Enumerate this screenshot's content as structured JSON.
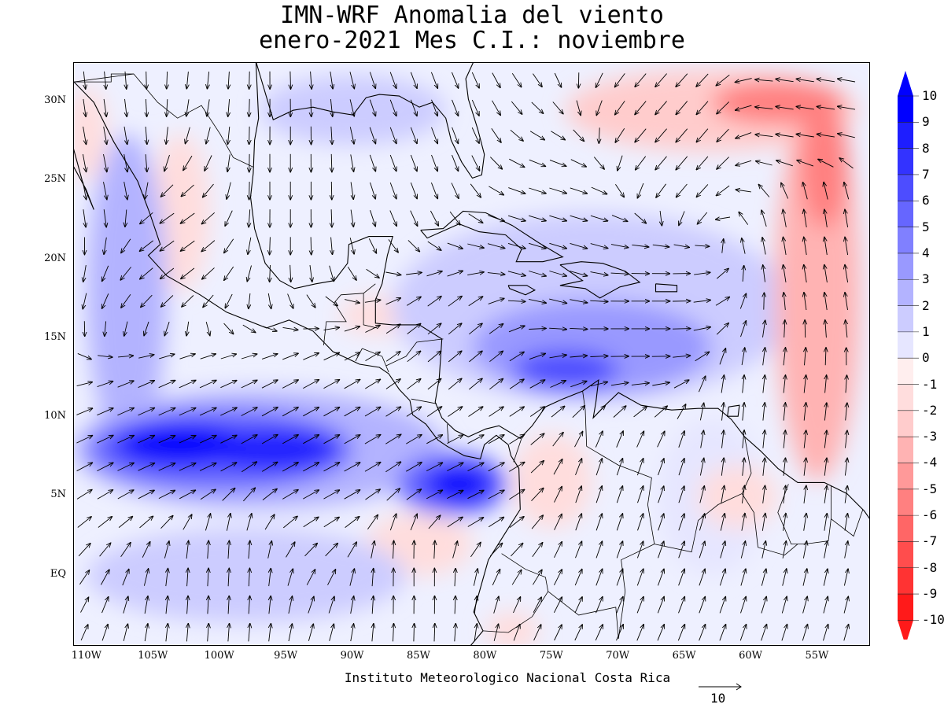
{
  "title": {
    "line1": "IMN-WRF Anomalia del viento",
    "line2": "enero-2021 Mes C.I.: noviembre"
  },
  "footer": "Instituto Meteorologico Nacional Costa Rica",
  "axes": {
    "lat_labels": [
      "30N",
      "25N",
      "20N",
      "15N",
      "10N",
      "5N",
      "EQ"
    ],
    "lat_values": [
      30,
      25,
      20,
      15,
      10,
      5,
      0
    ],
    "lon_labels": [
      "110W",
      "105W",
      "100W",
      "95W",
      "90W",
      "85W",
      "80W",
      "75W",
      "70W",
      "65W",
      "60W",
      "55W"
    ],
    "lon_values": [
      -110,
      -105,
      -100,
      -95,
      -90,
      -85,
      -80,
      -75,
      -70,
      -65,
      -60,
      -55
    ],
    "lon_range": [
      -111,
      -51
    ],
    "lat_range": [
      -4.5,
      32.5
    ]
  },
  "colorbar": {
    "labels": [
      "10",
      "9",
      "8",
      "7",
      "6",
      "5",
      "4",
      "3",
      "2",
      "1",
      "0",
      "-1",
      "-2",
      "-3",
      "-4",
      "-5",
      "-6",
      "-7",
      "-8",
      "-9",
      "-10"
    ],
    "colors": [
      "#0000ff",
      "#1e1eff",
      "#3333ff",
      "#4d4dff",
      "#6666ff",
      "#8080ff",
      "#9999ff",
      "#b3b3ff",
      "#ccccff",
      "#e6e6ff",
      "#ffeeee",
      "#ffdddd",
      "#ffcccc",
      "#ffb3b3",
      "#ff9999",
      "#ff8080",
      "#ff6666",
      "#ff4d4d",
      "#ff3333",
      "#ff1a1a"
    ]
  },
  "reference_vector": {
    "label": "10"
  },
  "map": {
    "background": "#eef0ff",
    "coast_color": "#000000",
    "arrow_color": "#000000"
  },
  "anomaly_regions": [
    {
      "lon": -103,
      "lat": 8.3,
      "rx": 5,
      "ry": 1.4,
      "level": 10
    },
    {
      "lon": -96,
      "lat": 8.0,
      "rx": 5,
      "ry": 1.3,
      "level": 9
    },
    {
      "lon": -100,
      "lat": 8.0,
      "rx": 10,
      "ry": 2.6,
      "level": 6
    },
    {
      "lon": -97,
      "lat": 8.0,
      "rx": 14,
      "ry": 3.8,
      "level": 3
    },
    {
      "lon": -82,
      "lat": 5.8,
      "rx": 2.6,
      "ry": 1.2,
      "level": 10
    },
    {
      "lon": -82.5,
      "lat": 5.8,
      "rx": 4.2,
      "ry": 2.0,
      "level": 6
    },
    {
      "lon": -72,
      "lat": 14.5,
      "rx": 9,
      "ry": 3.0,
      "level": 4
    },
    {
      "lon": -74,
      "lat": 13.0,
      "rx": 4,
      "ry": 1.3,
      "level": 7
    },
    {
      "lon": -72,
      "lat": 17,
      "rx": 15,
      "ry": 6,
      "level": 2
    },
    {
      "lon": -90,
      "lat": 29.5,
      "rx": 7,
      "ry": 2.2,
      "level": 2
    },
    {
      "lon": -107,
      "lat": 18,
      "rx": 3,
      "ry": 10,
      "level": 3
    },
    {
      "lon": -98,
      "lat": 0,
      "rx": 12,
      "ry": 3,
      "level": 2
    },
    {
      "lon": -63,
      "lat": 5,
      "rx": 4,
      "ry": 5,
      "level": 1
    },
    {
      "lon": -63,
      "lat": 29.5,
      "rx": 11,
      "ry": 2.6,
      "level": -2
    },
    {
      "lon": -58,
      "lat": 30.0,
      "rx": 5,
      "ry": 1.4,
      "level": -5
    },
    {
      "lon": -55,
      "lat": 18,
      "rx": 3.2,
      "ry": 12,
      "level": -3
    },
    {
      "lon": -54.5,
      "lat": 26,
      "rx": 1.8,
      "ry": 4,
      "level": -5
    },
    {
      "lon": -103,
      "lat": 23,
      "rx": 2.2,
      "ry": 5,
      "level": -1
    },
    {
      "lon": -110,
      "lat": 28,
      "rx": 1.5,
      "ry": 3,
      "level": -1
    },
    {
      "lon": -88,
      "lat": 16.5,
      "rx": 3,
      "ry": 1.2,
      "level": -1
    },
    {
      "lon": -85,
      "lat": 2,
      "rx": 4,
      "ry": 2,
      "level": -1
    },
    {
      "lon": -75,
      "lat": 6,
      "rx": 3,
      "ry": 3,
      "level": -1
    },
    {
      "lon": -61,
      "lat": 5,
      "rx": 3,
      "ry": 2,
      "level": -1
    },
    {
      "lon": -78,
      "lat": -3.5,
      "rx": 2,
      "ry": 1.2,
      "level": -1
    }
  ],
  "wind_field": [
    {
      "lon": -108,
      "lat": 25,
      "u": 0.2,
      "v": -1.0
    },
    {
      "lon": -104,
      "lat": 22,
      "u": -0.7,
      "v": -0.5
    },
    {
      "lon": -95,
      "lat": 25,
      "u": 0.0,
      "v": -1.0
    },
    {
      "lon": -85,
      "lat": 27,
      "u": 0.3,
      "v": -0.8
    },
    {
      "lon": -75,
      "lat": 21,
      "u": 1.0,
      "v": -0.3
    },
    {
      "lon": -68,
      "lat": 16,
      "u": 1.0,
      "v": 0.0
    },
    {
      "lon": -82,
      "lat": 14,
      "u": 0.6,
      "v": 0.5
    },
    {
      "lon": -103,
      "lat": 8,
      "u": 1.0,
      "v": 0.45
    },
    {
      "lon": -92,
      "lat": 7,
      "u": 1.0,
      "v": 0.55
    },
    {
      "lon": -82,
      "lat": 6,
      "u": 1.0,
      "v": 0.5
    },
    {
      "lon": -100,
      "lat": 0,
      "u": 0.05,
      "v": 1.0
    },
    {
      "lon": -85,
      "lat": 0,
      "u": 0.0,
      "v": 1.0
    },
    {
      "lon": -60,
      "lat": 10,
      "u": 0.1,
      "v": 1.0
    },
    {
      "lon": -55,
      "lat": 22,
      "u": -0.15,
      "v": 1.0
    },
    {
      "lon": -56,
      "lat": 29,
      "u": -1.0,
      "v": 0.15
    },
    {
      "lon": -65,
      "lat": 28,
      "u": -0.6,
      "v": -0.7
    },
    {
      "lon": -70,
      "lat": 5,
      "u": 0.3,
      "v": 0.9
    }
  ],
  "coastlines": [
    [
      [
        -111,
        31.3
      ],
      [
        -109.5,
        30
      ],
      [
        -108,
        27.5
      ],
      [
        -106.2,
        25
      ],
      [
        -105.3,
        23
      ],
      [
        -104.5,
        21
      ],
      [
        -105.4,
        20.3
      ],
      [
        -104,
        19
      ],
      [
        -101.5,
        17.8
      ],
      [
        -99.5,
        16.7
      ],
      [
        -96.5,
        15.7
      ],
      [
        -94.8,
        16.2
      ],
      [
        -93,
        15.5
      ],
      [
        -91.5,
        14.2
      ],
      [
        -89.5,
        13.4
      ],
      [
        -88,
        13.2
      ],
      [
        -87.3,
        12.8
      ],
      [
        -86.5,
        11.8
      ],
      [
        -85.7,
        11.1
      ],
      [
        -85.5,
        10.2
      ],
      [
        -84.5,
        9.6
      ],
      [
        -83.6,
        8.6
      ],
      [
        -82.9,
        8.2
      ],
      [
        -81.6,
        7.6
      ],
      [
        -80.4,
        7.4
      ],
      [
        -80.1,
        8.3
      ],
      [
        -79.2,
        8.9
      ],
      [
        -78.3,
        8.3
      ],
      [
        -78.1,
        7.6
      ],
      [
        -77.5,
        6.8
      ],
      [
        -77.4,
        4.2
      ],
      [
        -78.6,
        2.6
      ],
      [
        -79.8,
        1.0
      ],
      [
        -80.3,
        -0.5
      ],
      [
        -80.9,
        -2.3
      ],
      [
        -80.2,
        -3.5
      ],
      [
        -81.2,
        -4.5
      ]
    ],
    [
      [
        -112,
        30.0
      ],
      [
        -111.5,
        28.5
      ],
      [
        -110.3,
        24.8
      ],
      [
        -109.5,
        23.2
      ],
      [
        -110.1,
        24.5
      ],
      [
        -111.6,
        26.8
      ],
      [
        -112.8,
        28.5
      ]
    ],
    [
      [
        -97.3,
        32.6
      ],
      [
        -97.1,
        29.0
      ],
      [
        -97.4,
        27.6
      ],
      [
        -97.5,
        25.5
      ],
      [
        -97.7,
        24.0
      ],
      [
        -97.4,
        22.0
      ],
      [
        -96.6,
        19.8
      ],
      [
        -95.5,
        18.7
      ],
      [
        -94.4,
        18.2
      ],
      [
        -92.8,
        18.5
      ],
      [
        -91.4,
        18.7
      ],
      [
        -90.4,
        19.8
      ],
      [
        -90.3,
        21.0
      ],
      [
        -88.8,
        21.5
      ],
      [
        -87.0,
        21.5
      ],
      [
        -87.4,
        20.3
      ],
      [
        -87.8,
        18.5
      ],
      [
        -88.3,
        17.5
      ],
      [
        -88.3,
        16.0
      ],
      [
        -87.0,
        15.9
      ],
      [
        -85.0,
        15.9
      ],
      [
        -83.3,
        15.0
      ],
      [
        -83.5,
        12.5
      ],
      [
        -83.8,
        11.0
      ],
      [
        -83.3,
        10.0
      ],
      [
        -82.3,
        9.2
      ],
      [
        -81.3,
        8.8
      ],
      [
        -80.0,
        9.3
      ],
      [
        -79.0,
        9.5
      ],
      [
        -77.4,
        8.7
      ],
      [
        -76.5,
        9.5
      ],
      [
        -75.5,
        10.7
      ],
      [
        -74.2,
        11.2
      ],
      [
        -72.7,
        11.7
      ],
      [
        -71.5,
        12.4
      ],
      [
        -71.7,
        11.0
      ],
      [
        -71.9,
        10.0
      ],
      [
        -71.0,
        10.8
      ],
      [
        -70.0,
        11.6
      ],
      [
        -68.3,
        10.8
      ],
      [
        -66.0,
        10.5
      ],
      [
        -64.0,
        10.6
      ],
      [
        -62.5,
        10.6
      ],
      [
        -61.5,
        9.9
      ],
      [
        -60.5,
        8.8
      ],
      [
        -59.3,
        7.9
      ],
      [
        -58.0,
        6.8
      ],
      [
        -56.5,
        5.9
      ],
      [
        -54.5,
        5.9
      ],
      [
        -52.8,
        5.2
      ],
      [
        -51.5,
        4.1
      ],
      [
        -51.0,
        3.5
      ]
    ],
    [
      [
        -97.3,
        32.6
      ],
      [
        -96.0,
        28.9
      ],
      [
        -94.5,
        29.5
      ],
      [
        -93.0,
        29.7
      ],
      [
        -91.5,
        29.4
      ],
      [
        -90.0,
        29.2
      ],
      [
        -89.0,
        30.3
      ],
      [
        -88.0,
        30.5
      ],
      [
        -86.5,
        30.4
      ],
      [
        -85.0,
        29.7
      ],
      [
        -84.0,
        30.0
      ],
      [
        -83.0,
        29.0
      ],
      [
        -82.6,
        27.6
      ],
      [
        -81.8,
        26.2
      ],
      [
        -81.0,
        25.2
      ],
      [
        -80.3,
        25.4
      ],
      [
        -80.1,
        26.7
      ],
      [
        -80.6,
        28.3
      ],
      [
        -81.3,
        30.2
      ],
      [
        -81.5,
        31.5
      ],
      [
        -80.9,
        32.6
      ]
    ],
    [
      [
        -84.9,
        21.9
      ],
      [
        -83.2,
        22.0
      ],
      [
        -81.7,
        23.1
      ],
      [
        -80.0,
        23.0
      ],
      [
        -78.0,
        22.2
      ],
      [
        -76.0,
        21.1
      ],
      [
        -74.2,
        20.2
      ],
      [
        -75.7,
        19.9
      ],
      [
        -77.7,
        19.9
      ],
      [
        -77.3,
        20.7
      ],
      [
        -78.5,
        21.6
      ],
      [
        -80.5,
        21.8
      ],
      [
        -82.0,
        22.3
      ],
      [
        -84.4,
        21.4
      ],
      [
        -84.9,
        21.9
      ]
    ],
    [
      [
        -74.4,
        19.7
      ],
      [
        -72.8,
        19.9
      ],
      [
        -71.2,
        19.8
      ],
      [
        -69.5,
        19.3
      ],
      [
        -68.4,
        18.6
      ],
      [
        -69.9,
        18.3
      ],
      [
        -71.4,
        17.6
      ],
      [
        -72.5,
        18.2
      ],
      [
        -74.4,
        18.4
      ],
      [
        -72.7,
        18.7
      ],
      [
        -74.4,
        19.7
      ]
    ],
    [
      [
        -78.3,
        18.4
      ],
      [
        -76.9,
        18.4
      ],
      [
        -76.3,
        18.1
      ],
      [
        -77.0,
        17.8
      ],
      [
        -78.2,
        18.2
      ],
      [
        -78.3,
        18.4
      ]
    ],
    [
      [
        -67.2,
        18.5
      ],
      [
        -65.6,
        18.4
      ],
      [
        -65.6,
        18.0
      ],
      [
        -67.2,
        18.0
      ],
      [
        -67.2,
        18.5
      ]
    ],
    [
      [
        -61.7,
        10.7
      ],
      [
        -60.9,
        10.8
      ],
      [
        -61.0,
        10.1
      ],
      [
        -61.8,
        10.1
      ],
      [
        -61.7,
        10.7
      ]
    ]
  ],
  "borders": [
    [
      [
        -111,
        31.3
      ],
      [
        -106.5,
        31.8
      ],
      [
        -104.7,
        30.0
      ],
      [
        -103.2,
        29.0
      ],
      [
        -101.4,
        29.8
      ],
      [
        -100.0,
        28.0
      ],
      [
        -99.0,
        26.5
      ],
      [
        -97.5,
        25.9
      ]
    ],
    [
      [
        -92.2,
        14.6
      ],
      [
        -92.0,
        16.1
      ],
      [
        -90.5,
        16.1
      ],
      [
        -91.4,
        17.3
      ],
      [
        -90.9,
        17.8
      ],
      [
        -89.2,
        17.9
      ],
      [
        -88.3,
        18.5
      ]
    ],
    [
      [
        -89.2,
        17.9
      ],
      [
        -89.2,
        15.9
      ],
      [
        -88.2,
        15.7
      ]
    ],
    [
      [
        -89.3,
        14.4
      ],
      [
        -89.8,
        13.6
      ]
    ],
    [
      [
        -89.3,
        14.4
      ],
      [
        -87.8,
        13.9
      ],
      [
        -87.3,
        12.9
      ]
    ],
    [
      [
        -87.5,
        13.3
      ],
      [
        -86.0,
        13.9
      ],
      [
        -85.2,
        14.8
      ],
      [
        -83.2,
        15.0
      ]
    ],
    [
      [
        -85.6,
        11.2
      ],
      [
        -84.3,
        11.0
      ],
      [
        -83.7,
        10.9
      ]
    ],
    [
      [
        -82.9,
        9.6
      ],
      [
        -82.8,
        8.4
      ]
    ],
    [
      [
        -77.9,
        7.2
      ],
      [
        -77.3,
        8.7
      ]
    ],
    [
      [
        -72.7,
        11.7
      ],
      [
        -72.5,
        10.5
      ],
      [
        -72.4,
        8.2
      ],
      [
        -70.0,
        7.0
      ],
      [
        -67.5,
        6.2
      ],
      [
        -67.8,
        4.5
      ],
      [
        -67.3,
        2.0
      ],
      [
        -69.8,
        1.0
      ],
      [
        -69.5,
        -1.0
      ],
      [
        -70.0,
        -4.0
      ]
    ],
    [
      [
        -78.8,
        1.4
      ],
      [
        -77.0,
        0.4
      ],
      [
        -75.5,
        -0.1
      ],
      [
        -75.3,
        -1.0
      ],
      [
        -76.5,
        -2.6
      ],
      [
        -78.3,
        -3.6
      ],
      [
        -80.2,
        -3.5
      ]
    ],
    [
      [
        -75.3,
        -1.0
      ],
      [
        -73.0,
        -2.5
      ],
      [
        -70.2,
        -2.0
      ],
      [
        -70.0,
        -4.0
      ]
    ],
    [
      [
        -67.3,
        2.0
      ],
      [
        -64.5,
        1.5
      ],
      [
        -64.0,
        3.5
      ],
      [
        -62.5,
        4.5
      ],
      [
        -60.7,
        5.2
      ],
      [
        -60.0,
        6.5
      ],
      [
        -60.5,
        8.8
      ]
    ],
    [
      [
        -60.7,
        5.2
      ],
      [
        -59.8,
        4.0
      ],
      [
        -59.5,
        1.8
      ],
      [
        -57.5,
        1.3
      ],
      [
        -56.5,
        2.0
      ]
    ],
    [
      [
        -57.2,
        5.8
      ],
      [
        -58.0,
        4.0
      ],
      [
        -57.0,
        2.0
      ],
      [
        -56.0,
        2.0
      ],
      [
        -54.2,
        2.2
      ],
      [
        -54.0,
        3.6
      ],
      [
        -54.0,
        5.7
      ]
    ],
    [
      [
        -54.0,
        3.6
      ],
      [
        -52.3,
        2.5
      ],
      [
        -51.6,
        4.2
      ]
    ],
    [
      [
        -111,
        31.3
      ],
      [
        -108.2,
        31.3
      ],
      [
        -108.2,
        31.8
      ],
      [
        -106.5,
        31.8
      ]
    ]
  ]
}
